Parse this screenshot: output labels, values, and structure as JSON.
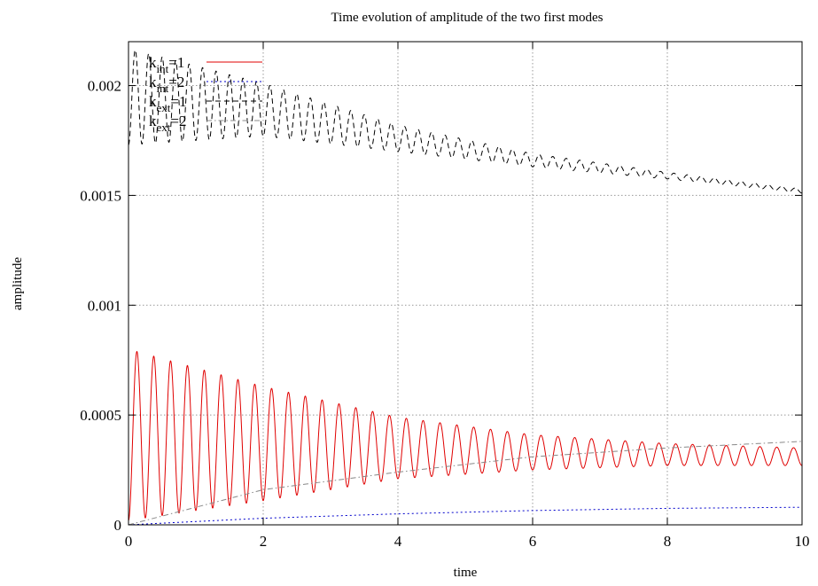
{
  "chart_data": {
    "type": "line",
    "title": "Time evolution of amplitude of the two first modes",
    "xlabel": "time",
    "ylabel": "amplitude",
    "xlim": [
      0,
      10
    ],
    "ylim": [
      0,
      0.0022
    ],
    "x_ticks": [
      0,
      2,
      4,
      6,
      8,
      10
    ],
    "x_tick_labels": [
      "0",
      "2",
      "4",
      "6",
      "8",
      "10"
    ],
    "y_ticks": [
      0,
      0.0005,
      0.001,
      0.0015,
      0.002
    ],
    "y_tick_labels": [
      "0",
      "0.0005",
      "0.001",
      "0.0015",
      "0.002"
    ],
    "grid": true,
    "legend_position": "top-left",
    "series": [
      {
        "name": "k_int=1",
        "label_base": "k",
        "label_sub": "int",
        "label_suffix": "=1",
        "color": "#e00000",
        "dash": "solid",
        "model": "oscillating",
        "mean": [
          [
            0,
            0.00041
          ],
          [
            2,
            0.00037
          ],
          [
            4,
            0.00035
          ],
          [
            6,
            0.00033
          ],
          [
            8,
            0.00032
          ],
          [
            10,
            0.00031
          ]
        ],
        "half_amplitude": [
          [
            0,
            0.00039
          ],
          [
            2,
            0.00026
          ],
          [
            4,
            0.00014
          ],
          [
            6,
            8e-05
          ],
          [
            8,
            5e-05
          ],
          [
            10,
            4e-05
          ]
        ],
        "period": 0.25,
        "peaks": [
          [
            0.1,
            0.0008
          ],
          [
            2,
            0.00063
          ],
          [
            4,
            0.00051
          ],
          [
            6,
            0.00043
          ],
          [
            8,
            0.00038
          ],
          [
            10,
            0.00034
          ]
        ],
        "troughs": [
          [
            0,
            0.0
          ],
          [
            2,
            0.00011
          ],
          [
            4,
            0.00022
          ],
          [
            6,
            0.00026
          ],
          [
            8,
            0.00027
          ],
          [
            10,
            0.00029
          ]
        ]
      },
      {
        "name": "k_int=2",
        "label_base": "k",
        "label_sub": "int",
        "label_suffix": "=2",
        "color": "#0000cc",
        "dash": "dotted",
        "model": "smooth",
        "points": [
          [
            0,
            0.0
          ],
          [
            2,
            3e-05
          ],
          [
            4,
            5e-05
          ],
          [
            6,
            6.5e-05
          ],
          [
            8,
            7.5e-05
          ],
          [
            10,
            8e-05
          ]
        ]
      },
      {
        "name": "k_ext=1",
        "label_base": "k",
        "label_sub": "ext",
        "label_suffix": "=1",
        "color": "#000000",
        "dash": "dash",
        "model": "oscillating",
        "mean": [
          [
            0,
            0.00195
          ],
          [
            2,
            0.00189
          ],
          [
            4,
            0.00176
          ],
          [
            6,
            0.00166
          ],
          [
            8,
            0.00159
          ],
          [
            10,
            0.00152
          ]
        ],
        "half_amplitude": [
          [
            0,
            0.00022
          ],
          [
            2,
            0.00012
          ],
          [
            4,
            6e-05
          ],
          [
            6,
            3e-05
          ],
          [
            8,
            1.5e-05
          ],
          [
            10,
            1e-05
          ]
        ],
        "period": 0.2
      },
      {
        "name": "k_ext=2",
        "label_base": "k",
        "label_sub": "ext",
        "label_suffix": "=2",
        "color": "#888888",
        "dash": "dashdot",
        "model": "smooth",
        "points": [
          [
            0,
            0.0
          ],
          [
            2,
            0.00016
          ],
          [
            4,
            0.00024
          ],
          [
            6,
            0.00031
          ],
          [
            8,
            0.00035
          ],
          [
            10,
            0.00038
          ]
        ]
      }
    ]
  }
}
